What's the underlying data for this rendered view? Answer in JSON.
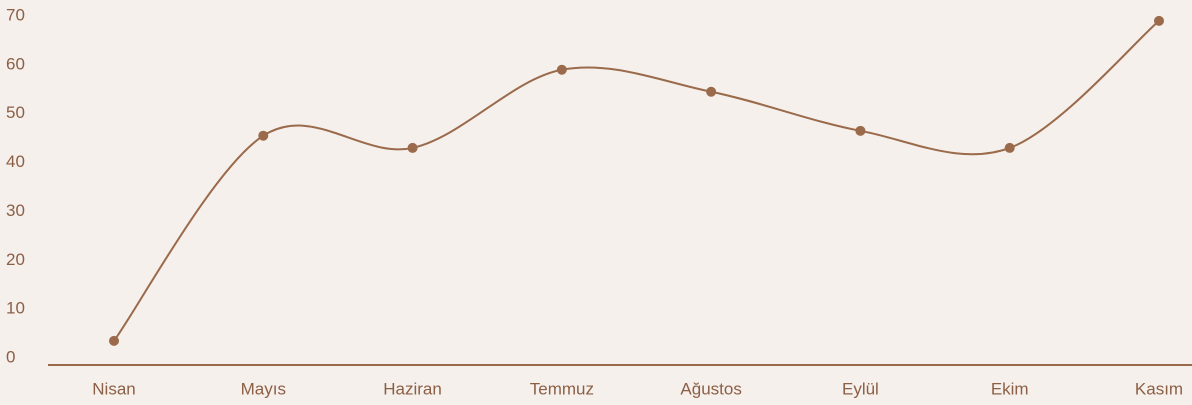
{
  "chart_data": {
    "type": "line",
    "categories": [
      "Nisan",
      "Mayıs",
      "Haziran",
      "Temmuz",
      "Ağustos",
      "Eylül",
      "Ekim",
      "Kasım"
    ],
    "series": [
      {
        "color": "#9a6a4b",
        "values": [
          3.5,
          45.5,
          43,
          59,
          54.5,
          46.5,
          43,
          69
        ]
      }
    ],
    "ylim": [
      0,
      70
    ],
    "yticks": [
      0,
      10,
      20,
      30,
      40,
      50,
      60,
      70
    ],
    "grid": false,
    "smooth": true
  }
}
